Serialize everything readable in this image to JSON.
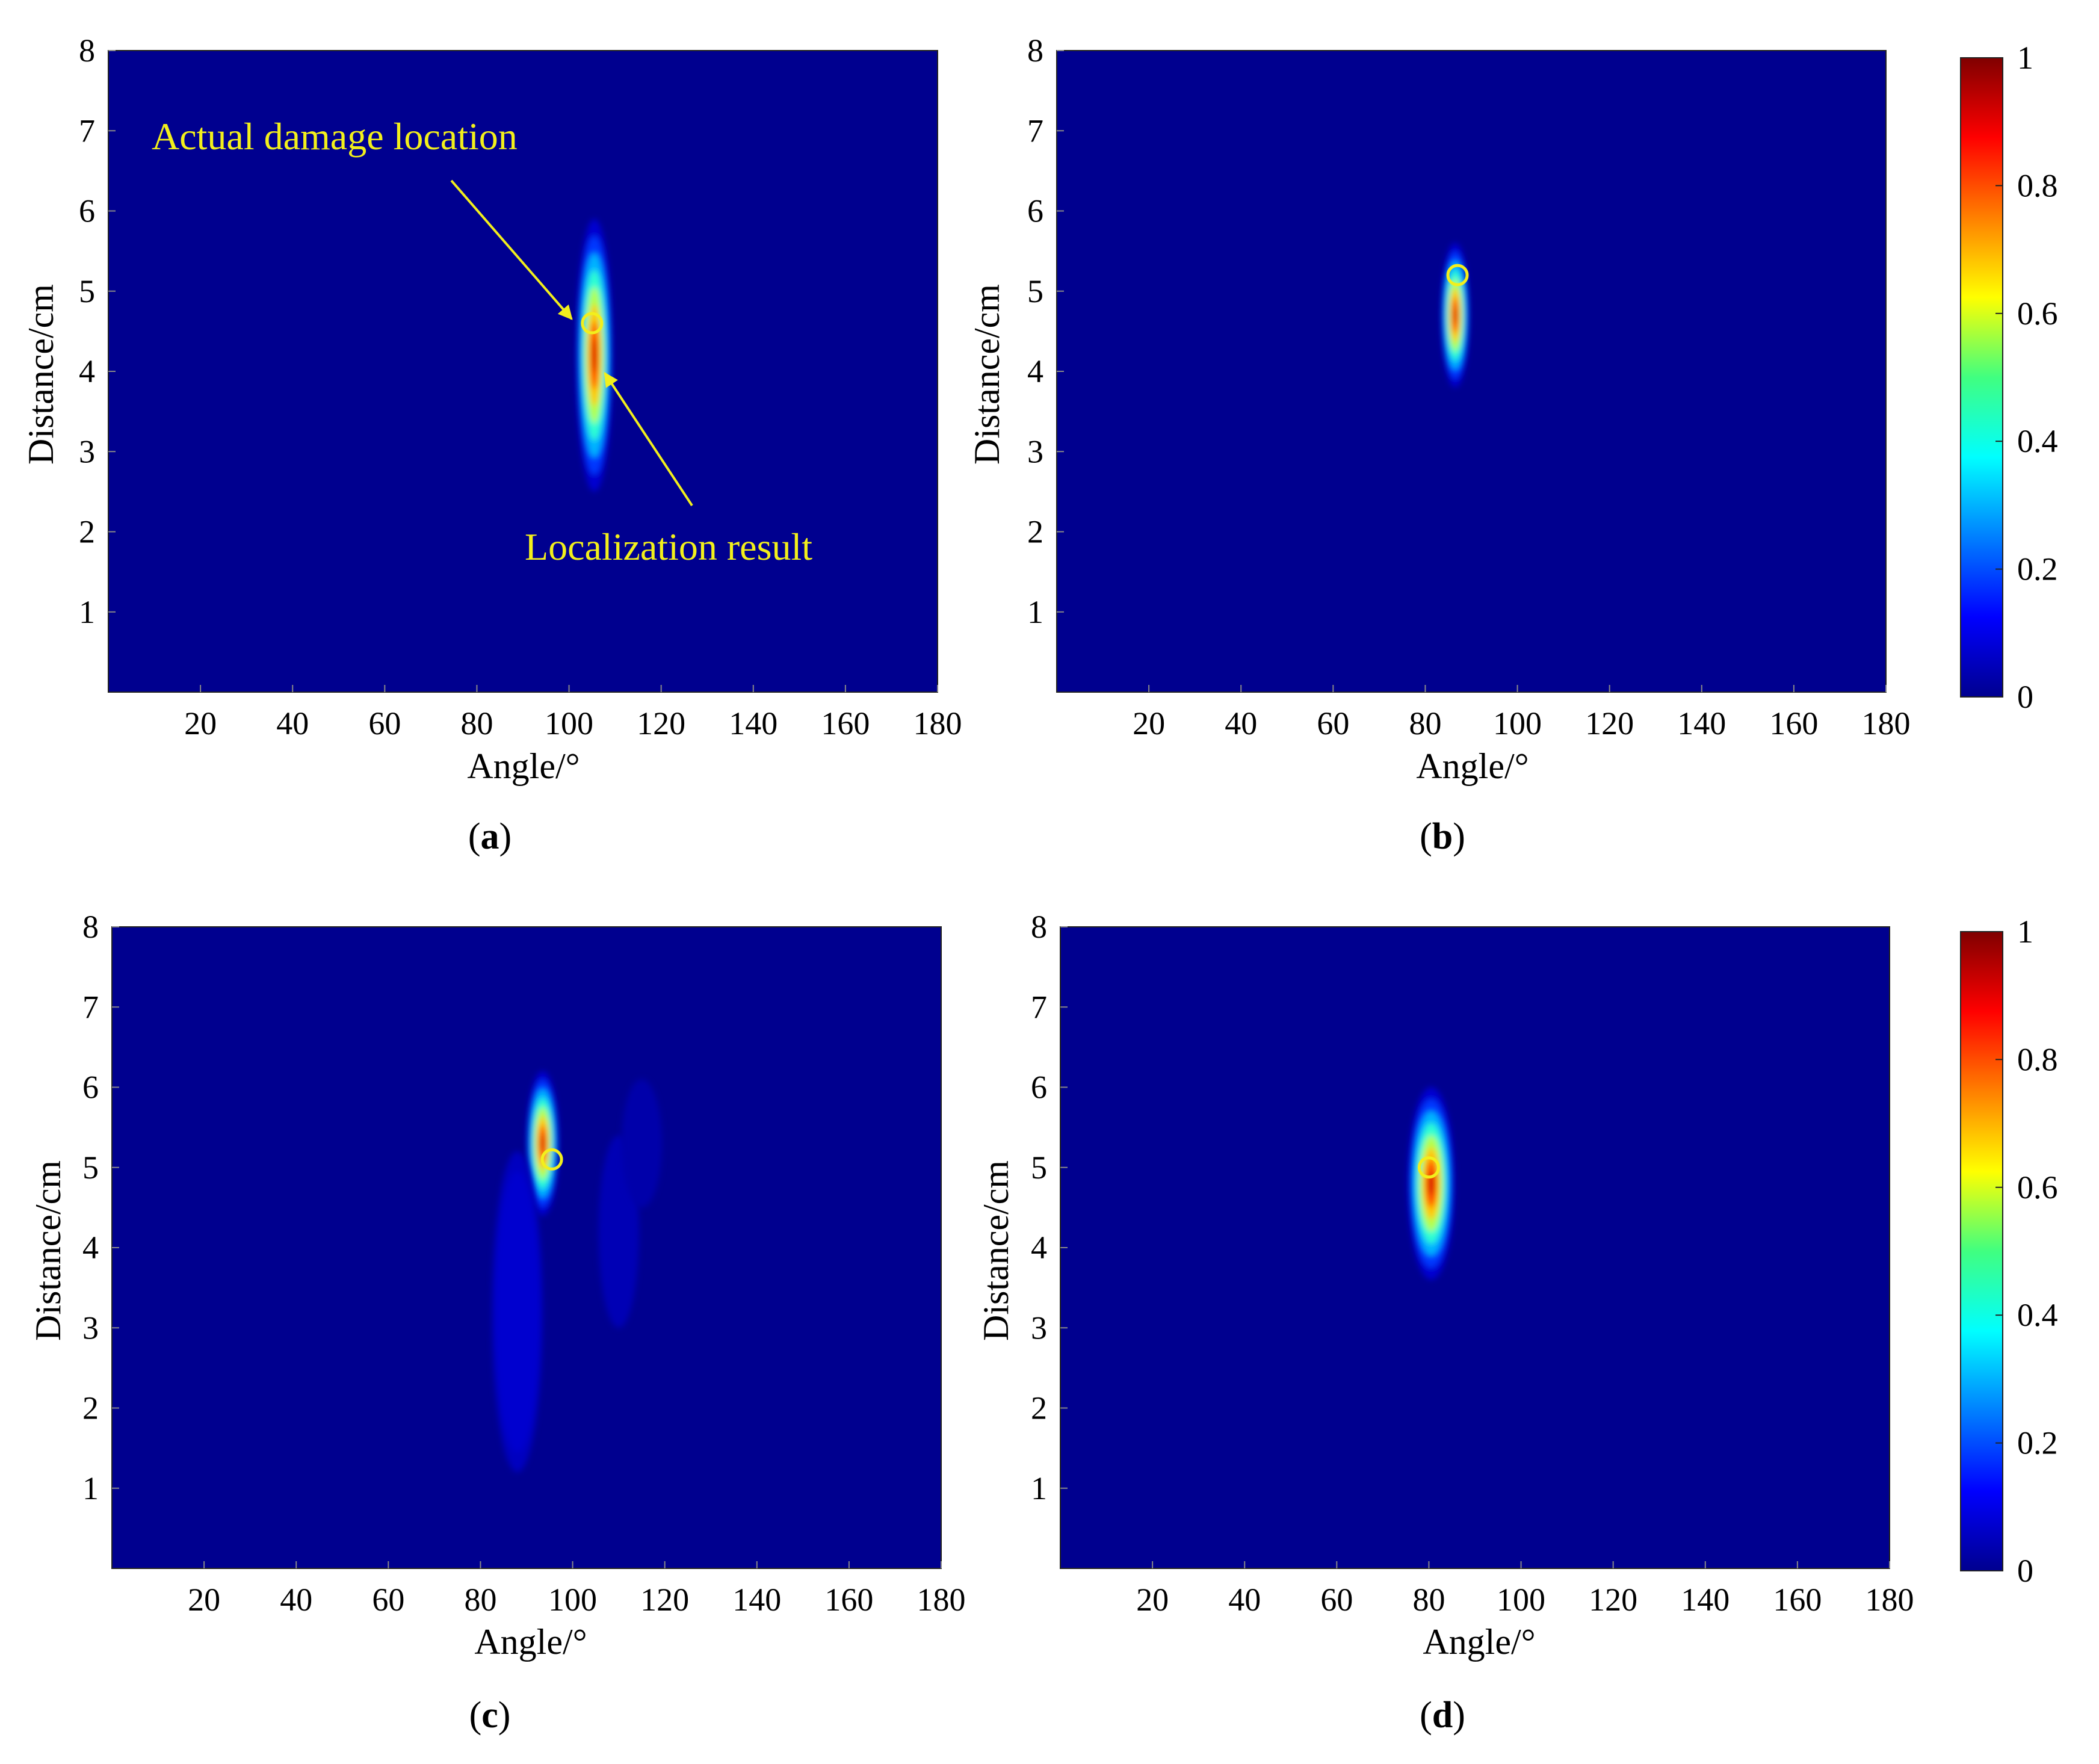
{
  "chart_data": [
    {
      "type": "heatmap",
      "panel_label": "a",
      "xlabel": "Angle/°",
      "ylabel": "Distance/cm",
      "xlim": [
        0,
        180
      ],
      "ylim": [
        0,
        8
      ],
      "xticks": [
        20,
        40,
        60,
        80,
        100,
        120,
        140,
        160,
        180
      ],
      "yticks": [
        1,
        2,
        3,
        4,
        5,
        6,
        7,
        8
      ],
      "background_color": "#00008f",
      "colormap": "jet",
      "color_range": [
        0,
        1
      ],
      "hotspots": [
        {
          "angle": 105.5,
          "distance": 4.2,
          "angle_spread": 1.8,
          "distance_spread": 0.85,
          "intensity": 1.0
        }
      ],
      "marker": {
        "shape": "circle",
        "angle": 105,
        "distance": 4.6,
        "color": "#f2ef1c"
      },
      "annotations": [
        {
          "text": "Actual damage location",
          "points_to": "marker"
        },
        {
          "text": "Localization result",
          "points_to": "hotspot"
        }
      ]
    },
    {
      "type": "heatmap",
      "panel_label": "b",
      "xlabel": "Angle/°",
      "ylabel": "Distance/cm",
      "xlim": [
        0,
        180
      ],
      "ylim": [
        0,
        8
      ],
      "xticks": [
        20,
        40,
        60,
        80,
        100,
        120,
        140,
        160,
        180
      ],
      "yticks": [
        1,
        2,
        3,
        4,
        5,
        6,
        7,
        8
      ],
      "background_color": "#00008f",
      "colormap": "jet",
      "color_range": [
        0,
        1
      ],
      "hotspots": [
        {
          "angle": 86.5,
          "distance": 4.7,
          "angle_spread": 1.4,
          "distance_spread": 0.45,
          "intensity": 1.0
        }
      ],
      "marker": {
        "shape": "circle",
        "angle": 87,
        "distance": 5.2,
        "color": "#f2ef1c"
      }
    },
    {
      "type": "heatmap",
      "panel_label": "c",
      "xlabel": "Angle/°",
      "ylabel": "Distance/cm",
      "xlim": [
        0,
        180
      ],
      "ylim": [
        0,
        8
      ],
      "xticks": [
        20,
        40,
        60,
        80,
        100,
        120,
        140,
        160,
        180
      ],
      "yticks": [
        1,
        2,
        3,
        4,
        5,
        6,
        7,
        8
      ],
      "background_color": "#00008f",
      "colormap": "jet",
      "color_range": [
        0,
        1
      ],
      "hotspots": [
        {
          "angle": 93.5,
          "distance": 5.3,
          "angle_spread": 1.6,
          "distance_spread": 0.45,
          "intensity": 1.0
        },
        {
          "angle": 88,
          "distance": 3.2,
          "angle_spread": 2.5,
          "distance_spread": 1.0,
          "intensity": 0.18
        },
        {
          "angle": 110,
          "distance": 4.2,
          "angle_spread": 2.0,
          "distance_spread": 0.6,
          "intensity": 0.15
        },
        {
          "angle": 115,
          "distance": 5.3,
          "angle_spread": 2.0,
          "distance_spread": 0.4,
          "intensity": 0.12
        }
      ],
      "marker": {
        "shape": "circle",
        "angle": 95.5,
        "distance": 5.1,
        "color": "#f2ef1c"
      }
    },
    {
      "type": "heatmap",
      "panel_label": "d",
      "xlabel": "Angle/°",
      "ylabel": "Distance/cm",
      "xlim": [
        0,
        180
      ],
      "ylim": [
        0,
        8
      ],
      "xticks": [
        20,
        40,
        60,
        80,
        100,
        120,
        140,
        160,
        180
      ],
      "yticks": [
        1,
        2,
        3,
        4,
        5,
        6,
        7,
        8
      ],
      "background_color": "#00008f",
      "colormap": "jet",
      "color_range": [
        0,
        1
      ],
      "hotspots": [
        {
          "angle": 80.5,
          "distance": 4.8,
          "angle_spread": 2.3,
          "distance_spread": 0.6,
          "intensity": 1.0
        }
      ],
      "marker": {
        "shape": "circle",
        "angle": 80,
        "distance": 5.0,
        "color": "#f2ef1c"
      }
    }
  ],
  "colorbars": [
    {
      "ticks": [
        "0",
        "0.2",
        "0.4",
        "0.6",
        "0.8",
        "1"
      ],
      "range": [
        0,
        1
      ]
    },
    {
      "ticks": [
        "0",
        "0.2",
        "0.4",
        "0.6",
        "0.8",
        "1"
      ],
      "range": [
        0,
        1
      ]
    }
  ],
  "labels": {
    "a": [
      "(",
      "a",
      ")"
    ],
    "b": [
      "(",
      "b",
      ")"
    ],
    "c": [
      "(",
      "c",
      ")"
    ],
    "d": [
      "(",
      "d",
      ")"
    ]
  }
}
